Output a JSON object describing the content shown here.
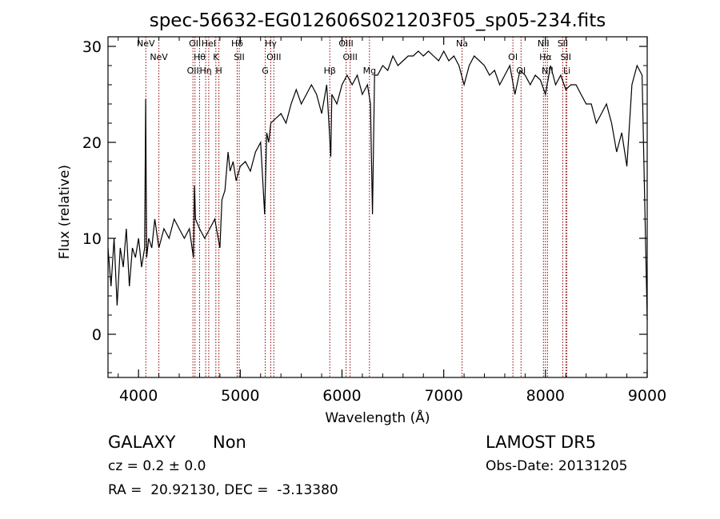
{
  "chart_data": {
    "type": "line",
    "title": "spec-56632-EG012606S021203F05_sp05-234.fits",
    "xlabel": "Wavelength (Å)",
    "ylabel": "Flux (relative)",
    "xlim": [
      3700,
      9000
    ],
    "ylim": [
      -4.5,
      31
    ],
    "xticks": [
      4000,
      5000,
      6000,
      7000,
      8000,
      9000
    ],
    "yticks": [
      0,
      10,
      20,
      30
    ],
    "series": [
      {
        "x": [
          3700,
          3730,
          3760,
          3790,
          3820,
          3850,
          3880,
          3910,
          3940,
          3970,
          4000,
          4030,
          4060,
          4070,
          4080,
          4100,
          4130,
          4160,
          4200,
          4250,
          4300,
          4350,
          4400,
          4450,
          4500,
          4540,
          4550,
          4560,
          4600,
          4650,
          4700,
          4750,
          4800,
          4820,
          4850,
          4880,
          4900,
          4930,
          4960,
          5000,
          5050,
          5100,
          5150,
          5200,
          5240,
          5260,
          5280,
          5300,
          5350,
          5400,
          5450,
          5500,
          5550,
          5600,
          5650,
          5700,
          5750,
          5800,
          5850,
          5890,
          5900,
          5950,
          6000,
          6050,
          6100,
          6150,
          6200,
          6250,
          6280,
          6300,
          6320,
          6350,
          6400,
          6450,
          6500,
          6550,
          6600,
          6650,
          6700,
          6750,
          6800,
          6850,
          6900,
          6950,
          7000,
          7050,
          7100,
          7150,
          7200,
          7250,
          7300,
          7350,
          7400,
          7450,
          7500,
          7550,
          7600,
          7650,
          7700,
          7750,
          7800,
          7850,
          7900,
          7950,
          8000,
          8050,
          8100,
          8150,
          8200,
          8250,
          8300,
          8350,
          8400,
          8450,
          8500,
          8550,
          8600,
          8650,
          8700,
          8750,
          8800,
          8850,
          8900,
          8950,
          9000
        ],
        "y": [
          9,
          5,
          10,
          3,
          9,
          7,
          11,
          5,
          9,
          8,
          10,
          7,
          9,
          24.5,
          8,
          10,
          9,
          12,
          9,
          11,
          10,
          12,
          11,
          10,
          11,
          8,
          15.5,
          12,
          11,
          10,
          11,
          12,
          9,
          14,
          15,
          19,
          17,
          18,
          16,
          17.5,
          18,
          17,
          19,
          20,
          12.5,
          21,
          20,
          22,
          22.5,
          23,
          22,
          24,
          25.5,
          24,
          25,
          26,
          25,
          23,
          26,
          18.5,
          25,
          24,
          26,
          27,
          26,
          27,
          25,
          26,
          24,
          12.5,
          27,
          27,
          28,
          27.5,
          29,
          28,
          28.5,
          29,
          29,
          29.5,
          29,
          29.5,
          29,
          28.5,
          29.5,
          28.5,
          29,
          28,
          26,
          28,
          29,
          28.5,
          28,
          27,
          27.5,
          26,
          27,
          28,
          25,
          27.5,
          27,
          26,
          27,
          26.5,
          25,
          28,
          26,
          27,
          25.5,
          26,
          26,
          25,
          24,
          24,
          22,
          23,
          24,
          22,
          19,
          21,
          17.5,
          26,
          28,
          27,
          1.5
        ]
      }
    ],
    "lines": [
      {
        "x": 4072,
        "labels": [
          "NeV"
        ]
      },
      {
        "x": 4200,
        "labels": [
          "NeV"
        ]
      },
      {
        "x": 4535,
        "labels": [
          "OII"
        ]
      },
      {
        "x": 4555,
        "labels": [
          "OII"
        ]
      },
      {
        "x": 4600,
        "labels": [
          "Hθ"
        ]
      },
      {
        "x": 4660,
        "labels": [
          "Hη"
        ]
      },
      {
        "x": 4690,
        "labels": [
          "HeI"
        ]
      },
      {
        "x": 4760,
        "labels": [
          "K"
        ]
      },
      {
        "x": 4790,
        "labels": [
          "H"
        ]
      },
      {
        "x": 4970,
        "labels": [
          "Hδ"
        ]
      },
      {
        "x": 4990,
        "labels": [
          "SII"
        ]
      },
      {
        "x": 5245,
        "labels": [
          "G"
        ]
      },
      {
        "x": 5300,
        "labels": [
          "Hγ"
        ]
      },
      {
        "x": 5330,
        "labels": [
          "OIII"
        ]
      },
      {
        "x": 5880,
        "labels": [
          "Hβ"
        ]
      },
      {
        "x": 6040,
        "labels": [
          "OIII"
        ]
      },
      {
        "x": 6080,
        "labels": [
          "OIII"
        ]
      },
      {
        "x": 6270,
        "labels": [
          "Mg"
        ]
      },
      {
        "x": 7180,
        "labels": [
          "Na"
        ]
      },
      {
        "x": 7680,
        "labels": [
          "OI"
        ]
      },
      {
        "x": 7760,
        "labels": [
          "OI"
        ]
      },
      {
        "x": 7980,
        "labels": [
          "NII"
        ]
      },
      {
        "x": 8000,
        "labels": [
          "Hα"
        ]
      },
      {
        "x": 8020,
        "labels": [
          "NII"
        ]
      },
      {
        "x": 8170,
        "labels": [
          "SII"
        ]
      },
      {
        "x": 8200,
        "labels": [
          "SII"
        ]
      },
      {
        "x": 8210,
        "labels": [
          "Li"
        ]
      }
    ],
    "colors": {
      "axes": "#000000",
      "line": "#000000",
      "marker": "#8b0000"
    },
    "grid": false
  },
  "footer": {
    "class": "GALAXY",
    "subclass": "Non",
    "survey": "LAMOST DR5",
    "cz": "cz = 0.2 ± 0.0",
    "obs_date": "Obs-Date: 20131205",
    "radec": "RA =  20.92130, DEC =  -3.13380"
  }
}
